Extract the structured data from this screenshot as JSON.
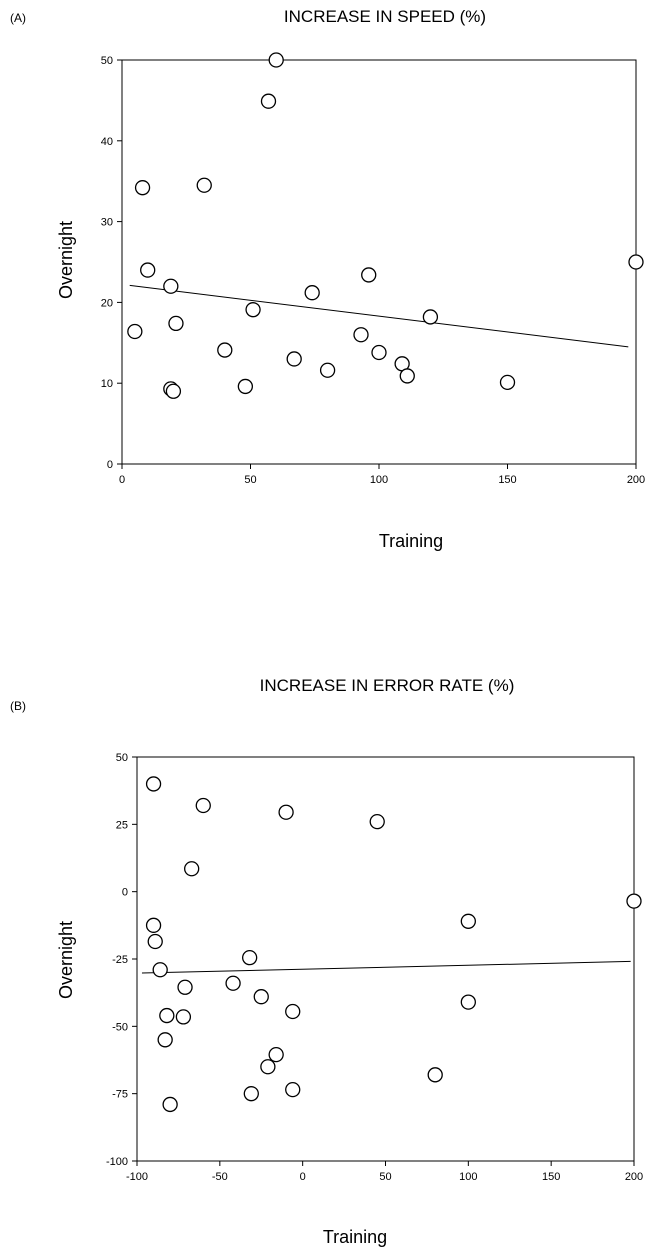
{
  "chart_data": [
    {
      "type": "scatter",
      "panel": "(A)",
      "title": "INCREASE IN SPEED (%)",
      "xlabel": "Training",
      "ylabel": "Overnight",
      "xlim": [
        0,
        200
      ],
      "ylim": [
        0,
        50
      ],
      "xticks": [
        0,
        50,
        100,
        150,
        200
      ],
      "yticks": [
        0,
        10,
        20,
        30,
        40,
        50
      ],
      "grid": false,
      "points": [
        {
          "x": 5,
          "y": 16.4
        },
        {
          "x": 8,
          "y": 34.2
        },
        {
          "x": 10,
          "y": 24.0
        },
        {
          "x": 19,
          "y": 22.0
        },
        {
          "x": 19,
          "y": 9.3
        },
        {
          "x": 20,
          "y": 9.0
        },
        {
          "x": 21,
          "y": 17.4
        },
        {
          "x": 32,
          "y": 34.5
        },
        {
          "x": 40,
          "y": 14.1
        },
        {
          "x": 48,
          "y": 9.6
        },
        {
          "x": 51,
          "y": 19.1
        },
        {
          "x": 57,
          "y": 44.9
        },
        {
          "x": 60,
          "y": 50.0
        },
        {
          "x": 67,
          "y": 13.0
        },
        {
          "x": 74,
          "y": 21.2
        },
        {
          "x": 80,
          "y": 11.6
        },
        {
          "x": 93,
          "y": 16.0
        },
        {
          "x": 96,
          "y": 23.4
        },
        {
          "x": 100,
          "y": 13.8
        },
        {
          "x": 109,
          "y": 12.4
        },
        {
          "x": 111,
          "y": 10.9
        },
        {
          "x": 120,
          "y": 18.2
        },
        {
          "x": 150,
          "y": 10.1
        },
        {
          "x": 200,
          "y": 25.0
        }
      ],
      "trendline": {
        "x": [
          3,
          197
        ],
        "y": [
          22.1,
          14.5
        ]
      }
    },
    {
      "type": "scatter",
      "panel": "(B)",
      "title": "INCREASE IN ERROR RATE (%)",
      "xlabel": "Training",
      "ylabel": "Overnight",
      "xlim": [
        -100,
        200
      ],
      "ylim": [
        -100,
        50
      ],
      "xticks": [
        -100,
        -50,
        0,
        50,
        100,
        150,
        200
      ],
      "yticks": [
        -100,
        -75,
        -50,
        -25,
        0,
        25,
        50
      ],
      "grid": false,
      "points": [
        {
          "x": -90,
          "y": 40
        },
        {
          "x": -60,
          "y": 32
        },
        {
          "x": -10,
          "y": 29.5
        },
        {
          "x": 45,
          "y": 26
        },
        {
          "x": -67,
          "y": 8.5
        },
        {
          "x": 200,
          "y": -3.5
        },
        {
          "x": -90,
          "y": -12.5
        },
        {
          "x": 100,
          "y": -11
        },
        {
          "x": -89,
          "y": -18.5
        },
        {
          "x": -86,
          "y": -29
        },
        {
          "x": -32,
          "y": -24.5
        },
        {
          "x": -42,
          "y": -34
        },
        {
          "x": -71,
          "y": -35.5
        },
        {
          "x": -25,
          "y": -39
        },
        {
          "x": 100,
          "y": -41
        },
        {
          "x": -6,
          "y": -44.5
        },
        {
          "x": -82,
          "y": -46
        },
        {
          "x": -72,
          "y": -46.5
        },
        {
          "x": -83,
          "y": -55
        },
        {
          "x": -16,
          "y": -60.5
        },
        {
          "x": -21,
          "y": -65
        },
        {
          "x": 80,
          "y": -68
        },
        {
          "x": -6,
          "y": -73.5
        },
        {
          "x": -31,
          "y": -75
        },
        {
          "x": -80,
          "y": -79
        }
      ],
      "trendline": {
        "x": [
          -97,
          198
        ],
        "y": [
          -30.2,
          -25.9
        ]
      }
    }
  ]
}
